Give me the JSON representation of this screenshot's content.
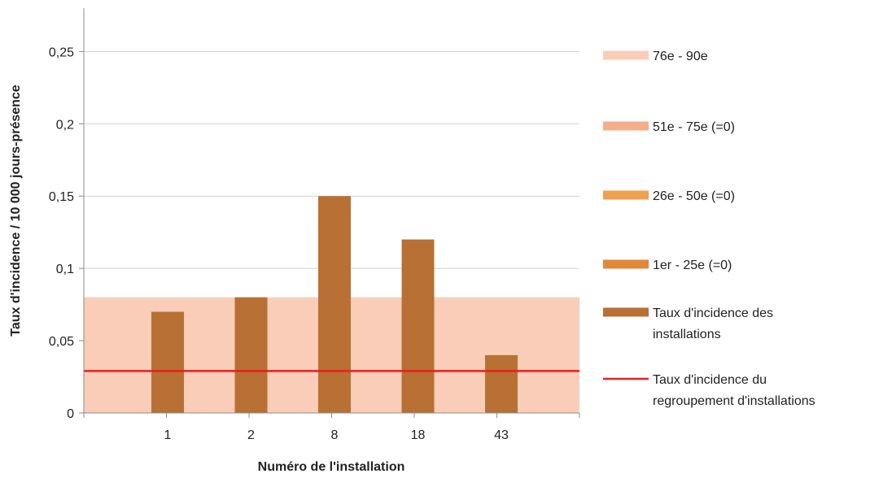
{
  "chart_data": {
    "type": "bar",
    "xlabel": "Numéro de l'installation",
    "ylabel": "Taux d'incidence / 10 000 jours-présence",
    "categories": [
      "1",
      "2",
      "8",
      "18",
      "43"
    ],
    "ylim": [
      0,
      0.28
    ],
    "yticks": [
      0,
      0.05,
      0.1,
      0.15,
      0.2,
      0.25
    ],
    "ytick_labels": [
      "0",
      "0,05",
      "0,1",
      "0,15",
      "0,2",
      "0,25"
    ],
    "grid": true,
    "legend_position": "right",
    "bands": [
      {
        "name": "76e - 90e",
        "y0": 0,
        "y1": 0.08,
        "color": "#f9cdb8"
      },
      {
        "name": "51e - 75e (=0)",
        "y0": 0,
        "y1": 0,
        "color": "#f5ae8a"
      },
      {
        "name": "26e - 50e (=0)",
        "y0": 0,
        "y1": 0,
        "color": "#f0a050"
      },
      {
        "name": "1er - 25e  (=0)",
        "y0": 0,
        "y1": 0,
        "color": "#e0883a"
      }
    ],
    "series": [
      {
        "name": "Taux d'incidence des installations",
        "values": [
          0.07,
          0.08,
          0.15,
          0.12,
          0.04
        ],
        "color": "#b87035"
      }
    ],
    "reference_line": {
      "name": "Taux d'incidence du regroupement d'installations",
      "value": 0.029,
      "color": "#ee1c1c"
    },
    "legend_lines": {
      "series": [
        "Taux d'incidence des",
        "installations"
      ],
      "reference": [
        "Taux d'incidence du",
        "regroupement d'installations"
      ]
    }
  }
}
